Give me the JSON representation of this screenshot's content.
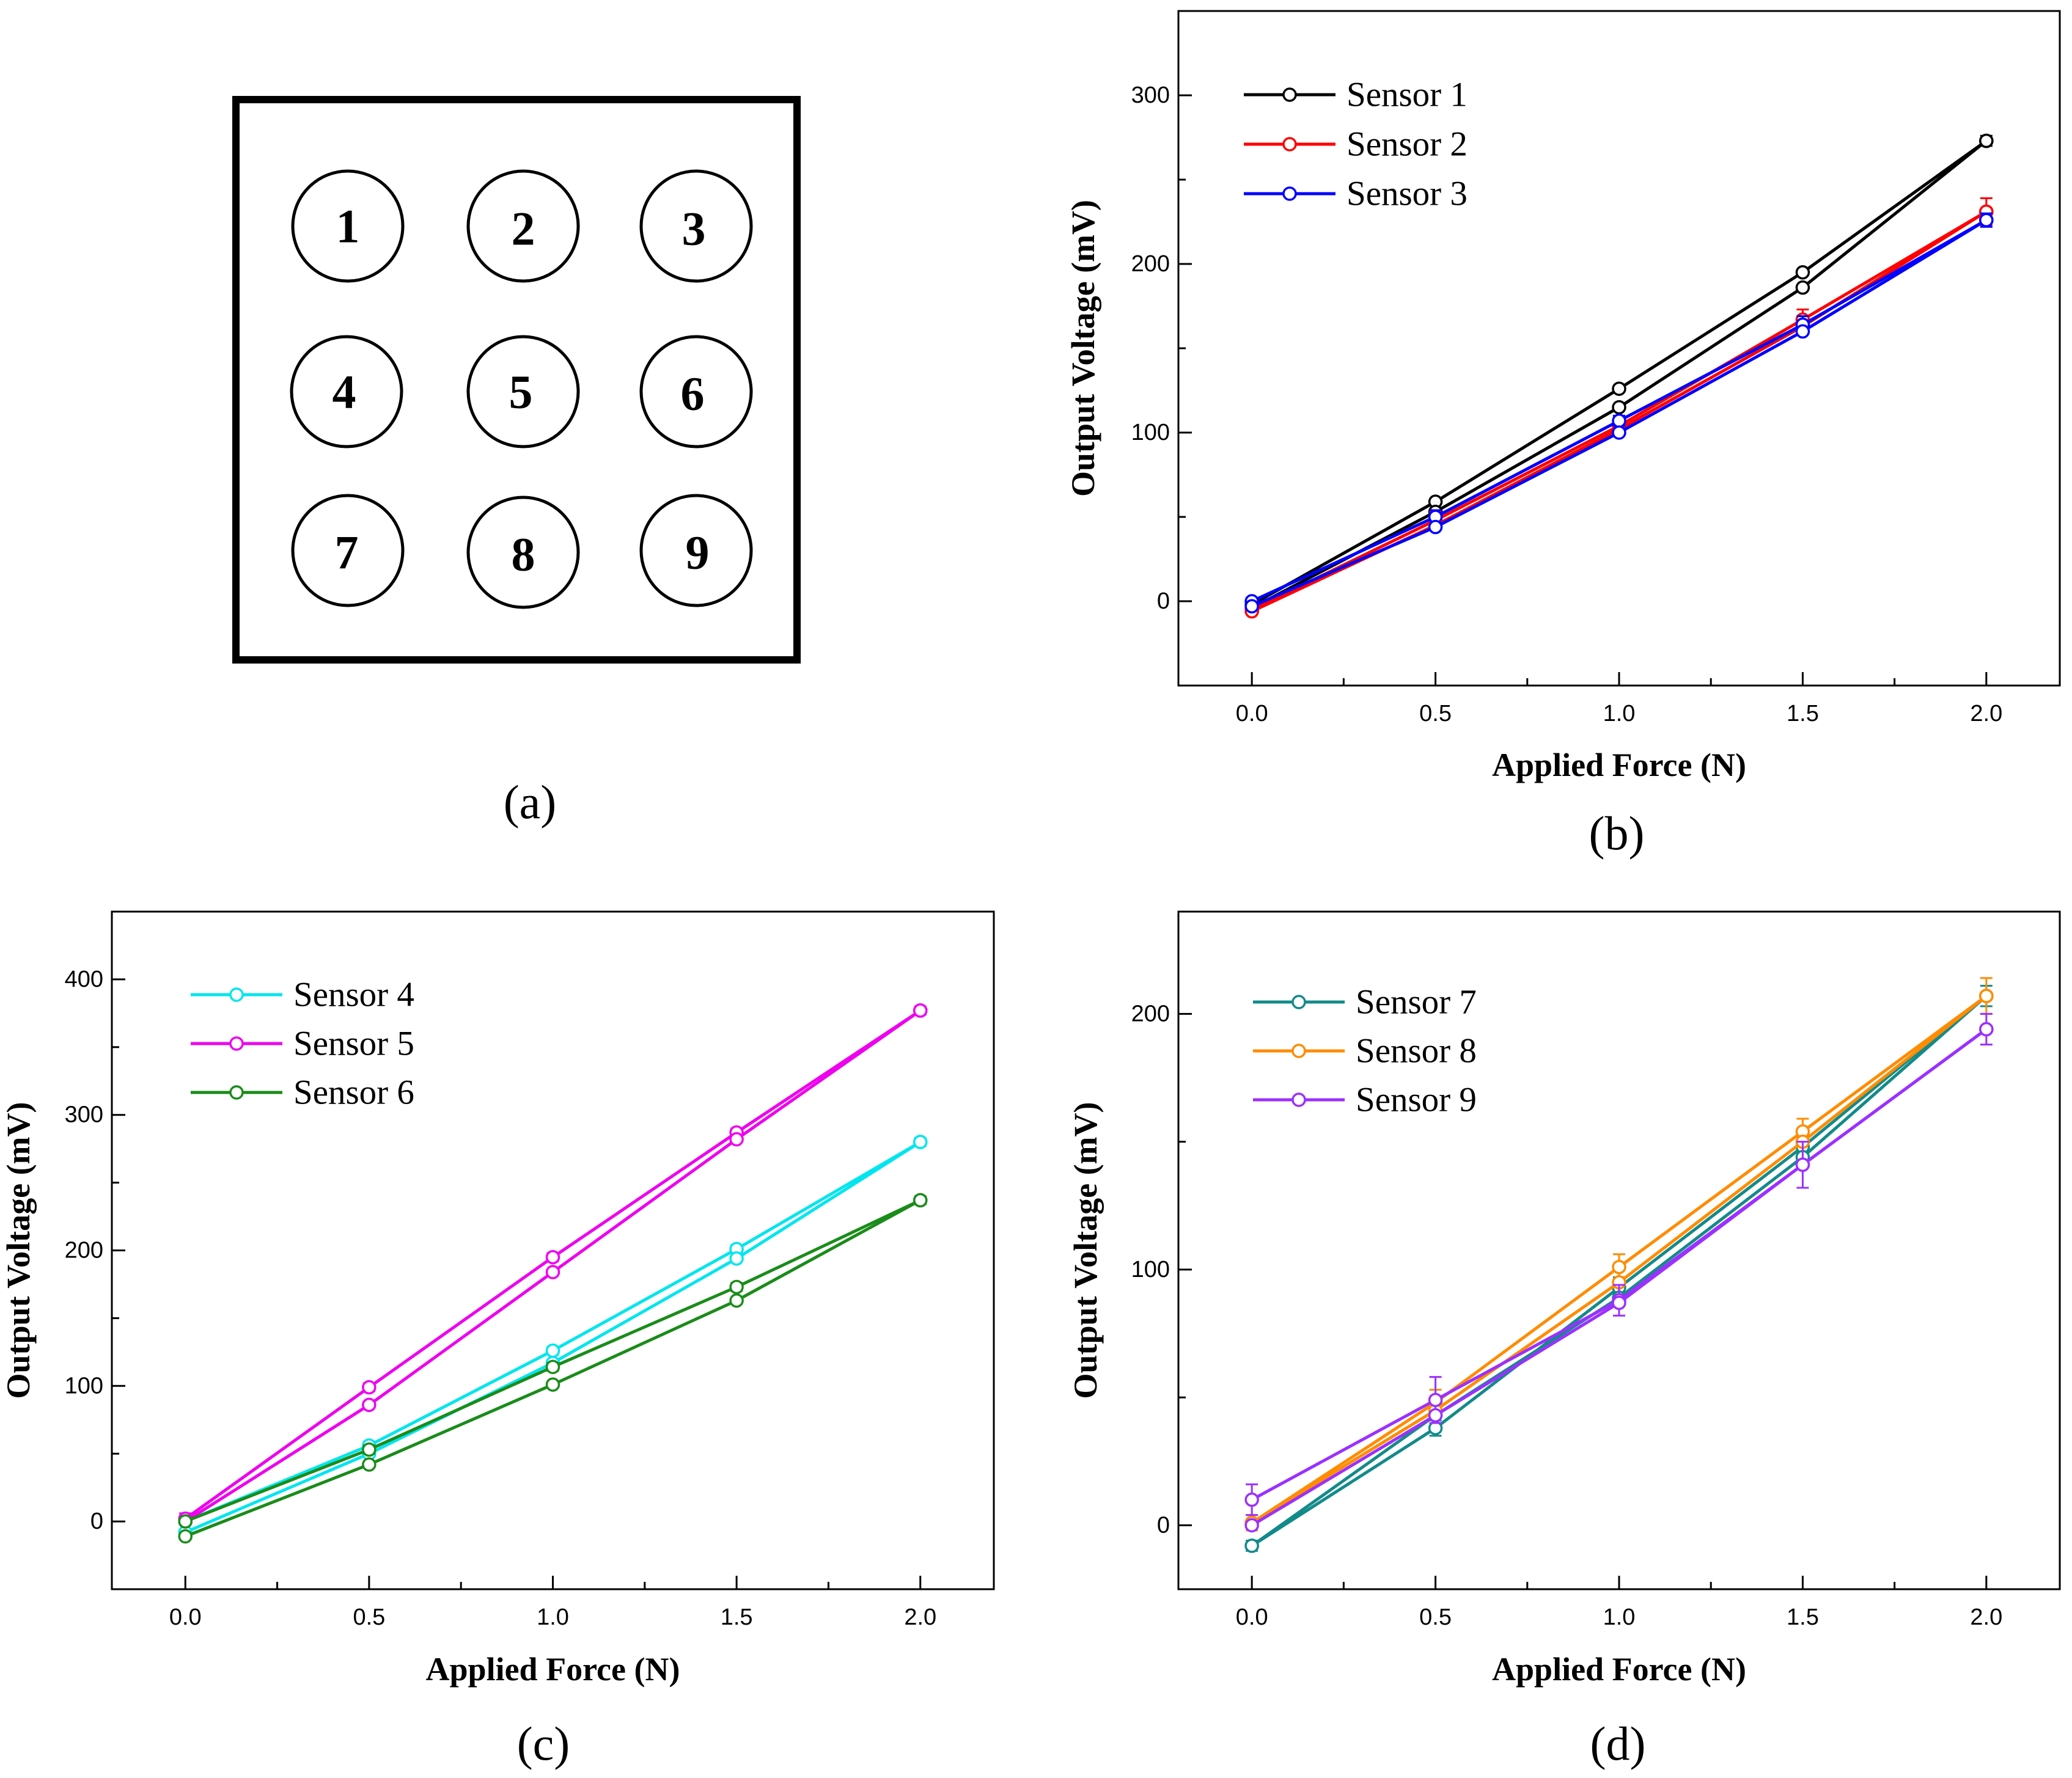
{
  "panel_a": {
    "caption": "(a)",
    "sensors": [
      "1",
      "2",
      "3",
      "4",
      "5",
      "6",
      "7",
      "8",
      "9"
    ]
  },
  "chart_data": [
    {
      "id": "b",
      "type": "line",
      "caption": "(b)",
      "xlabel": "Applied Force (N)",
      "ylabel": "Output Voltage (mV)",
      "xlim": [
        -0.2,
        2.2
      ],
      "ylim": [
        -50,
        350
      ],
      "xticks": [
        "0.0",
        "0.5",
        "1.0",
        "1.5",
        "2.0"
      ],
      "yticks": [
        "0",
        "100",
        "200",
        "300"
      ],
      "legend_position": "top-left",
      "series": [
        {
          "name": "Sensor 1",
          "color": "#000000",
          "loading": [
            [
              0,
              -2
            ],
            [
              0.5,
              59
            ],
            [
              1.0,
              126
            ],
            [
              1.5,
              195
            ],
            [
              2.0,
              273
            ]
          ],
          "unloading": [
            [
              2.0,
              273
            ],
            [
              1.5,
              186
            ],
            [
              1.0,
              115
            ],
            [
              0.5,
              53
            ],
            [
              0,
              -4
            ]
          ],
          "error": [
            0,
            0,
            0,
            0,
            3
          ]
        },
        {
          "name": "Sensor 2",
          "color": "#ff0000",
          "loading": [
            [
              0,
              -5
            ],
            [
              0.5,
              48
            ],
            [
              1.0,
              104
            ],
            [
              1.5,
              167
            ],
            [
              2.0,
              231
            ]
          ],
          "unloading": [
            [
              2.0,
              231
            ],
            [
              1.5,
              163
            ],
            [
              1.0,
              102
            ],
            [
              0.5,
              45
            ],
            [
              0,
              -6
            ]
          ],
          "error": [
            2,
            5,
            4,
            6,
            8
          ]
        },
        {
          "name": "Sensor 3",
          "color": "#0000ff",
          "loading": [
            [
              0,
              0
            ],
            [
              0.5,
              50
            ],
            [
              1.0,
              107
            ],
            [
              1.5,
              164
            ],
            [
              2.0,
              226
            ]
          ],
          "unloading": [
            [
              2.0,
              226
            ],
            [
              1.5,
              160
            ],
            [
              1.0,
              100
            ],
            [
              0.5,
              44
            ],
            [
              0,
              -3
            ]
          ],
          "error": [
            2,
            4,
            3,
            5,
            4
          ]
        }
      ]
    },
    {
      "id": "c",
      "type": "line",
      "caption": "(c)",
      "xlabel": "Applied Force (N)",
      "ylabel": "Output Voltage (mV)",
      "xlim": [
        -0.2,
        2.2
      ],
      "ylim": [
        -50,
        450
      ],
      "xticks": [
        "0.0",
        "0.5",
        "1.0",
        "1.5",
        "2.0"
      ],
      "yticks": [
        "0",
        "100",
        "200",
        "300",
        "400"
      ],
      "legend_position": "top-left",
      "series": [
        {
          "name": "Sensor 4",
          "color": "#00e5ee",
          "loading": [
            [
              0,
              0
            ],
            [
              0.5,
              56
            ],
            [
              1.0,
              126
            ],
            [
              1.5,
              201
            ],
            [
              2.0,
              280
            ]
          ],
          "unloading": [
            [
              2.0,
              280
            ],
            [
              1.5,
              194
            ],
            [
              1.0,
              117
            ],
            [
              0.5,
              50
            ],
            [
              0,
              -8
            ]
          ],
          "error": [
            2,
            3,
            3,
            3,
            3
          ]
        },
        {
          "name": "Sensor 5",
          "color": "#ee00ee",
          "loading": [
            [
              0,
              2
            ],
            [
              0.5,
              99
            ],
            [
              1.0,
              195
            ],
            [
              1.5,
              287
            ],
            [
              2.0,
              377
            ]
          ],
          "unloading": [
            [
              2.0,
              377
            ],
            [
              1.5,
              282
            ],
            [
              1.0,
              184
            ],
            [
              0.5,
              86
            ],
            [
              0,
              0
            ]
          ],
          "error": [
            4,
            3,
            3,
            3,
            3
          ]
        },
        {
          "name": "Sensor 6",
          "color": "#1a8c1a",
          "loading": [
            [
              0,
              0
            ],
            [
              0.5,
              53
            ],
            [
              1.0,
              114
            ],
            [
              1.5,
              173
            ],
            [
              2.0,
              237
            ]
          ],
          "unloading": [
            [
              2.0,
              237
            ],
            [
              1.5,
              163
            ],
            [
              1.0,
              101
            ],
            [
              0.5,
              42
            ],
            [
              0,
              -11
            ]
          ],
          "error": [
            2,
            3,
            3,
            3,
            3
          ]
        }
      ]
    },
    {
      "id": "d",
      "type": "line",
      "caption": "(d)",
      "xlabel": "Applied Force (N)",
      "ylabel": "Output Voltage (mV)",
      "xlim": [
        -0.2,
        2.2
      ],
      "ylim": [
        -25,
        240
      ],
      "xticks": [
        "0.0",
        "0.5",
        "1.0",
        "1.5",
        "2.0"
      ],
      "yticks": [
        "0",
        "100",
        "200"
      ],
      "legend_position": "top-left",
      "series": [
        {
          "name": "Sensor 7",
          "color": "#138a8a",
          "loading": [
            [
              0,
              -8
            ],
            [
              0.5,
              38
            ],
            [
              1.0,
              93
            ],
            [
              1.5,
              148
            ],
            [
              2.0,
              207
            ]
          ],
          "unloading": [
            [
              2.0,
              207
            ],
            [
              1.5,
              144
            ],
            [
              1.0,
              89
            ],
            [
              0.5,
              43
            ],
            [
              0,
              -8
            ]
          ],
          "error": [
            2,
            3,
            4,
            5,
            4
          ]
        },
        {
          "name": "Sensor 8",
          "color": "#ff8c00",
          "loading": [
            [
              0,
              1
            ],
            [
              0.5,
              48
            ],
            [
              1.0,
              101
            ],
            [
              1.5,
              154
            ],
            [
              2.0,
              207
            ]
          ],
          "unloading": [
            [
              2.0,
              207
            ],
            [
              1.5,
              150
            ],
            [
              1.0,
              95
            ],
            [
              0.5,
              45
            ],
            [
              0,
              1
            ]
          ],
          "error": [
            3,
            5,
            5,
            5,
            7
          ]
        },
        {
          "name": "Sensor 9",
          "color": "#9b30ff",
          "loading": [
            [
              0,
              10
            ],
            [
              0.5,
              49
            ],
            [
              1.0,
              88
            ],
            [
              1.5,
              141
            ],
            [
              2.0,
              194
            ]
          ],
          "unloading": [
            [
              2.0,
              194
            ],
            [
              1.5,
              141
            ],
            [
              1.0,
              87
            ],
            [
              0.5,
              43
            ],
            [
              0,
              0
            ]
          ],
          "error": [
            6,
            9,
            6,
            9,
            6
          ]
        }
      ]
    }
  ]
}
